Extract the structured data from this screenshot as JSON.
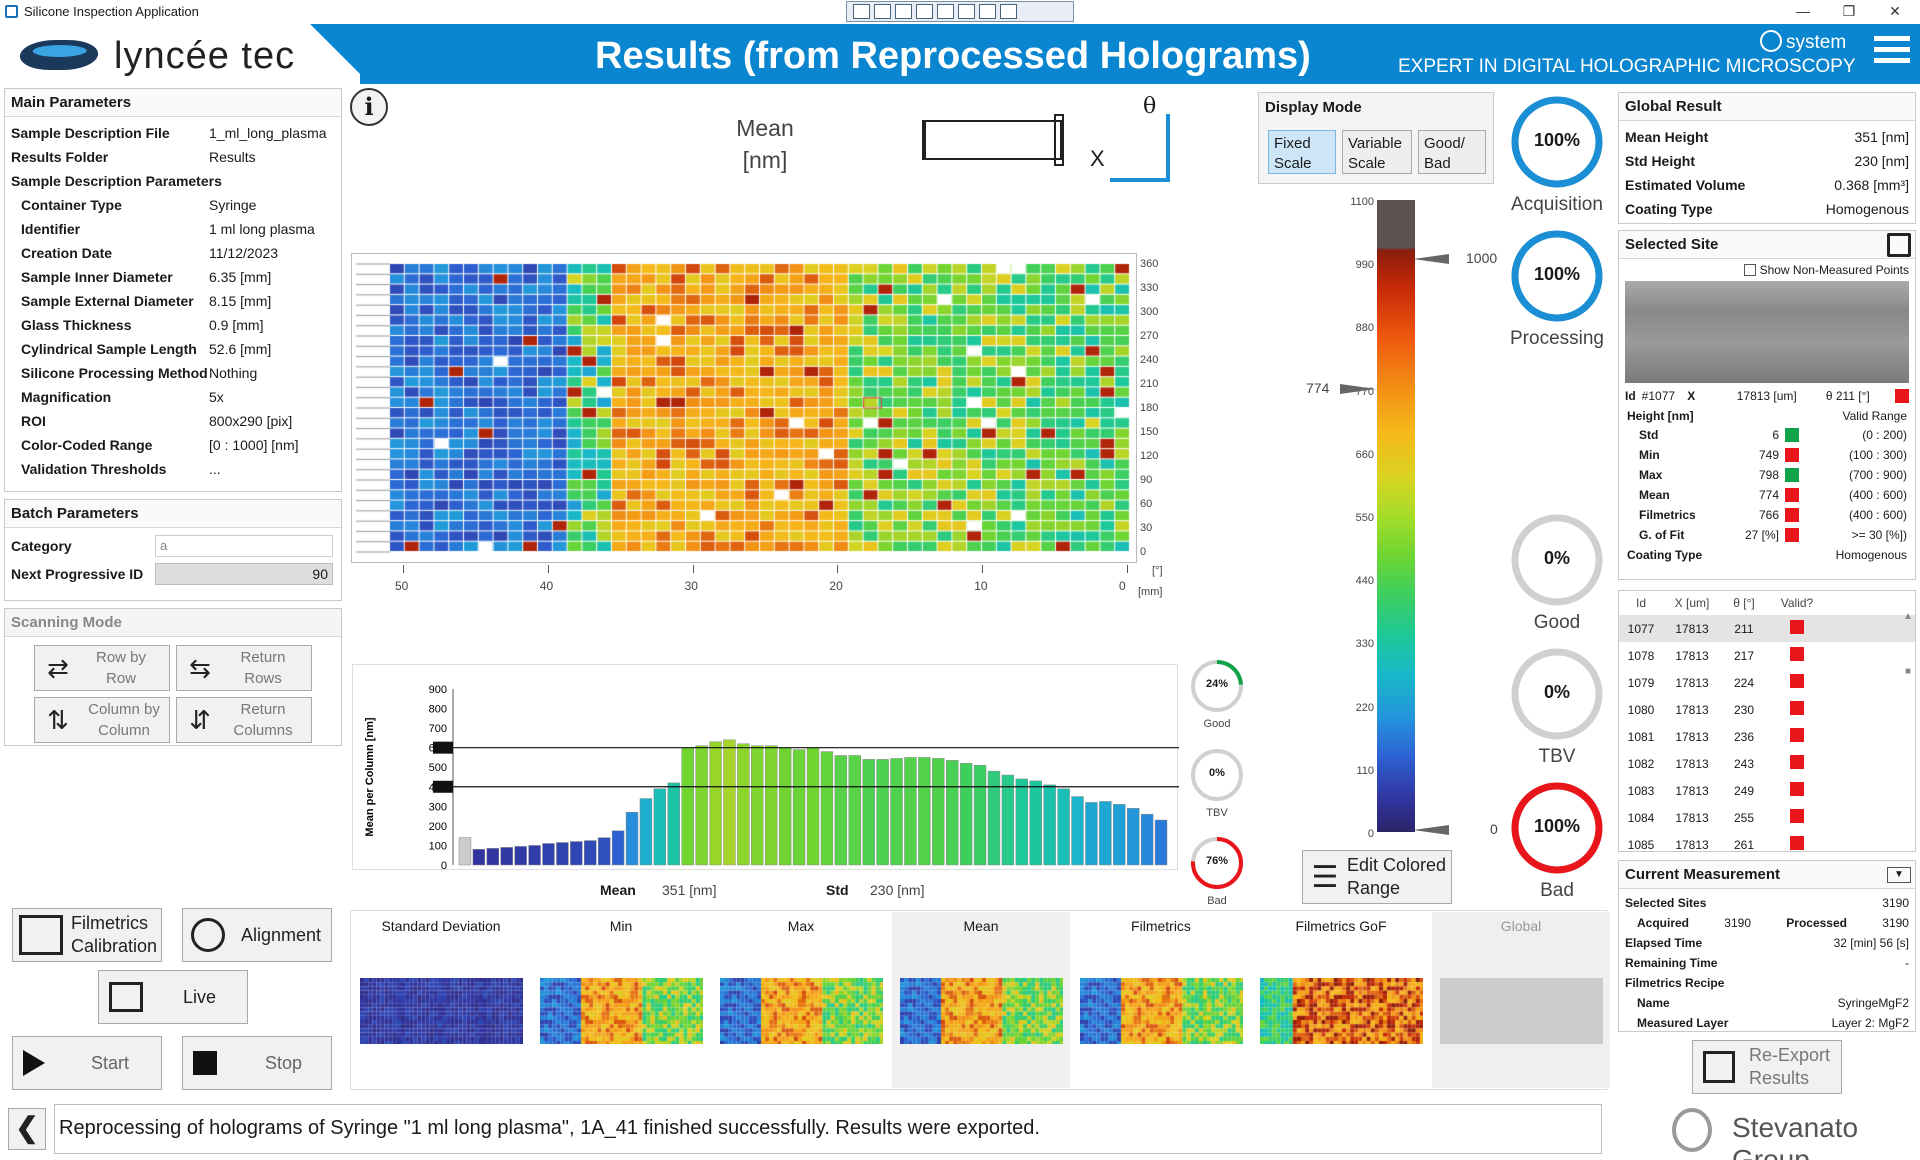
{
  "window": {
    "title": "Silicone Inspection Application"
  },
  "header": {
    "logo": "lyncée tec",
    "title": "Results (from Reprocessed Holograms)",
    "subtitle": "EXPERT IN DIGITAL HOLOGRAPHIC MICROSCOPY",
    "user": "system"
  },
  "main_params": {
    "title": "Main Parameters",
    "rows": [
      {
        "k": "Sample Description File",
        "v": "1_ml_long_plasma",
        "ind": false
      },
      {
        "k": "Results Folder",
        "v": "Results",
        "ind": false
      },
      {
        "k": "Sample Description Parameters",
        "v": "",
        "ind": false
      },
      {
        "k": "Container Type",
        "v": "Syringe",
        "ind": true
      },
      {
        "k": "Identifier",
        "v": "1 ml long plasma",
        "ind": true
      },
      {
        "k": "Creation Date",
        "v": "11/12/2023",
        "ind": true
      },
      {
        "k": "Sample Inner Diameter",
        "v": "6.35 [mm]",
        "ind": true
      },
      {
        "k": "Sample External Diameter",
        "v": "8.15 [mm]",
        "ind": true
      },
      {
        "k": "Glass Thickness",
        "v": "0.9 [mm]",
        "ind": true
      },
      {
        "k": "Cylindrical Sample Length",
        "v": "52.6 [mm]",
        "ind": true
      },
      {
        "k": "Silicone Processing Method",
        "v": "Nothing",
        "ind": true
      },
      {
        "k": "Magnification",
        "v": "5x",
        "ind": true
      },
      {
        "k": "ROI",
        "v": "800x290 [pix]",
        "ind": true
      },
      {
        "k": "Color-Coded Range",
        "v": "[0 : 1000] [nm]",
        "ind": true
      },
      {
        "k": "Validation Thresholds",
        "v": "...",
        "ind": true
      }
    ]
  },
  "batch": {
    "title": "Batch Parameters",
    "category_label": "Category",
    "category_value": "a",
    "next_id_label": "Next Progressive ID",
    "next_id_value": "90"
  },
  "scanning": {
    "title": "Scanning Mode",
    "btn1a": "Row by",
    "btn1b": "Row",
    "btn2a": "Return",
    "btn2b": "Rows",
    "btn3a": "Column by",
    "btn3b": "Column",
    "btn4a": "Return",
    "btn4b": "Columns"
  },
  "actions": {
    "filmetrics_a": "Filmetrics",
    "filmetrics_b": "Calibration",
    "alignment": "Alignment",
    "live": "Live",
    "start": "Start",
    "stop": "Stop"
  },
  "map": {
    "title_a": "Mean",
    "title_b": "[nm]",
    "axis_theta": "θ",
    "axis_x": "X",
    "theta_ticks": [
      "360",
      "330",
      "300",
      "270",
      "240",
      "210",
      "180",
      "150",
      "120",
      "90",
      "60",
      "30",
      "0"
    ],
    "theta_unit": "[°]",
    "x_ticks": [
      "50",
      "40",
      "30",
      "20",
      "10",
      "0"
    ],
    "x_unit": "[mm]"
  },
  "chart_data": {
    "type": "bar",
    "title": "",
    "ylabel": "Mean per Column [nm]",
    "ylim": [
      0,
      900
    ],
    "yticks": [
      "900",
      "800",
      "700",
      "600",
      "500",
      "400",
      "300",
      "200",
      "100",
      "0"
    ],
    "reference_lines": [
      600,
      400
    ],
    "values": [
      140,
      80,
      85,
      90,
      95,
      100,
      110,
      115,
      120,
      125,
      140,
      175,
      270,
      340,
      390,
      420,
      600,
      610,
      630,
      640,
      620,
      610,
      610,
      600,
      590,
      600,
      580,
      560,
      560,
      540,
      540,
      545,
      550,
      550,
      545,
      535,
      520,
      510,
      480,
      460,
      440,
      430,
      410,
      390,
      350,
      320,
      325,
      310,
      290,
      260,
      230
    ]
  },
  "chart_stats": {
    "mean_label": "Mean",
    "mean_value": "351 [nm]",
    "std_label": "Std",
    "std_value": "230 [nm]"
  },
  "small_gauges": [
    {
      "value": "24%",
      "label": "Good",
      "pct": 24,
      "color": "#10a34a"
    },
    {
      "value": "0%",
      "label": "TBV",
      "pct": 0,
      "color": "#999"
    },
    {
      "value": "76%",
      "label": "Bad",
      "pct": 76,
      "color": "#e8151b"
    }
  ],
  "display_mode": {
    "title": "Display Mode",
    "fixed_a": "Fixed",
    "fixed_b": "Scale",
    "variable_a": "Variable",
    "variable_b": "Scale",
    "good_a": "Good/",
    "good_b": "Bad"
  },
  "color_scale": {
    "ticks": [
      "1100",
      "990",
      "880",
      "770",
      "660",
      "550",
      "440",
      "330",
      "220",
      "110",
      "0"
    ],
    "max_marker": "1000",
    "current_marker": "774",
    "min_marker": "0",
    "edit_a": "Edit Colored",
    "edit_b": "Range"
  },
  "big_gauges": [
    {
      "value": "100%",
      "label": "Acquisition",
      "color": "#1b8fd6"
    },
    {
      "value": "100%",
      "label": "Processing",
      "color": "#1b8fd6"
    },
    {
      "value": "0%",
      "label": "Good",
      "color": "#c8c8c8"
    },
    {
      "value": "0%",
      "label": "TBV",
      "color": "#c8c8c8"
    },
    {
      "value": "100%",
      "label": "Bad",
      "color": "#e8151b"
    }
  ],
  "thumbnails": [
    {
      "label": "Standard Deviation"
    },
    {
      "label": "Min"
    },
    {
      "label": "Max"
    },
    {
      "label": "Mean"
    },
    {
      "label": "Filmetrics"
    },
    {
      "label": "Filmetrics GoF"
    },
    {
      "label": "Global"
    }
  ],
  "global_result": {
    "title": "Global Result",
    "rows": [
      {
        "k": "Mean Height",
        "v": "351 [nm]"
      },
      {
        "k": "Std Height",
        "v": "230 [nm]"
      },
      {
        "k": "Estimated Volume",
        "v": "0.368 [mm³]"
      },
      {
        "k": "Coating Type",
        "v": "Homogenous"
      }
    ]
  },
  "selected_site": {
    "title": "Selected Site",
    "show_label": "Show Non-Measured Points",
    "id_label": "Id",
    "id_value": "#1077",
    "x_label": "X",
    "x_value": "17813 [um]",
    "theta_value": "θ 211 [°]",
    "height_label": "Height [nm]",
    "valid_label": "Valid Range",
    "rows": [
      {
        "k": "Std",
        "v": "6",
        "c": "green",
        "r": "(0 : 200)"
      },
      {
        "k": "Min",
        "v": "749",
        "c": "red",
        "r": "(100 : 300)"
      },
      {
        "k": "Max",
        "v": "798",
        "c": "green",
        "r": "(700 : 900)"
      },
      {
        "k": "Mean",
        "v": "774",
        "c": "red",
        "r": "(400 : 600)"
      },
      {
        "k": "Filmetrics",
        "v": "766",
        "c": "red",
        "r": "(400 : 600)"
      },
      {
        "k": "G. of Fit",
        "v": "27 [%]",
        "c": "red",
        "r": ">= 30 [%])"
      }
    ],
    "coating_label": "Coating Type",
    "coating_value": "Homogenous"
  },
  "sites_table": {
    "headers": [
      "Id",
      "X [um]",
      "θ [°]",
      "Valid?"
    ],
    "rows": [
      [
        "1077",
        "17813",
        "211"
      ],
      [
        "1078",
        "17813",
        "217"
      ],
      [
        "1079",
        "17813",
        "224"
      ],
      [
        "1080",
        "17813",
        "230"
      ],
      [
        "1081",
        "17813",
        "236"
      ],
      [
        "1082",
        "17813",
        "243"
      ],
      [
        "1083",
        "17813",
        "249"
      ],
      [
        "1084",
        "17813",
        "255"
      ],
      [
        "1085",
        "17813",
        "261"
      ]
    ]
  },
  "current": {
    "title": "Current Measurement",
    "rows": [
      {
        "k": "Selected Sites",
        "v": "3190"
      },
      {
        "k": "Elapsed Time",
        "v": "32 [min]   56 [s]"
      },
      {
        "k": "Remaining Time",
        "v": "-"
      },
      {
        "k": "Filmetrics Recipe",
        "v": ""
      }
    ],
    "acquired_label": "Acquired",
    "acquired_value": "3190",
    "processed_label": "Processed",
    "processed_value": "3190",
    "name_label": "Name",
    "name_value": "SyringeMgF2",
    "layer_label": "Measured Layer",
    "layer_value": "Layer 2: MgF2"
  },
  "reexport": {
    "a": "Re-Export",
    "b": "Results"
  },
  "status": {
    "message": "Reprocessing of holograms of Syringe \"1 ml long plasma\", 1A_41 finished successfully. Results were exported.",
    "brand": "Stevanato Group"
  }
}
